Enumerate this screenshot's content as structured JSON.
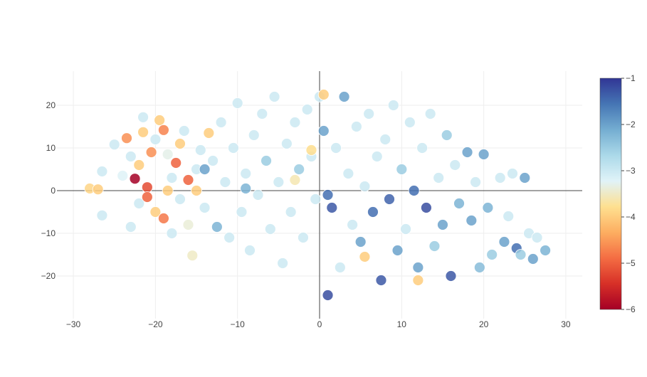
{
  "chart_data": {
    "type": "scatter",
    "title": "",
    "xlabel": "",
    "ylabel": "",
    "xlim": [
      -32,
      32
    ],
    "ylim": [
      -30,
      28
    ],
    "x_ticks": [
      -30,
      -20,
      -10,
      0,
      10,
      20,
      30
    ],
    "y_ticks": [
      -20,
      -10,
      0,
      10,
      20
    ],
    "x_tick_labels": [
      "−30",
      "−20",
      "−10",
      "0",
      "10",
      "20",
      "30"
    ],
    "y_tick_labels": [
      "−20",
      "−10",
      "0",
      "10",
      "20"
    ],
    "grid": true,
    "zero_lines": true,
    "colorscale": "RdYlBu",
    "color_range": [
      -6,
      -1
    ],
    "colorbar": {
      "ticks": [
        -1,
        -2,
        -3,
        -4,
        -5,
        -6
      ],
      "tick_labels": [
        "−1",
        "−2",
        "−3",
        "−4",
        "−5",
        "−6"
      ],
      "colors": [
        "#313695",
        "#4575b4",
        "#74add1",
        "#abd9e9",
        "#e0f3f8",
        "#fee090",
        "#fdae61",
        "#f46d43",
        "#d73027",
        "#a50026"
      ]
    },
    "points": [
      [
        -28,
        0.5,
        -3.9
      ],
      [
        -27,
        0.3,
        -4.0
      ],
      [
        -26.5,
        4.5,
        -3.0
      ],
      [
        -26.5,
        -5.8,
        -3.0
      ],
      [
        -25,
        10.8,
        -3.0
      ],
      [
        -24,
        3.5,
        -3.2
      ],
      [
        -23.5,
        12.3,
        -4.6
      ],
      [
        -23,
        8.0,
        -3.0
      ],
      [
        -23,
        -8.5,
        -3.0
      ],
      [
        -22.5,
        2.8,
        -6.0
      ],
      [
        -22,
        6.0,
        -4.0
      ],
      [
        -22,
        -3.0,
        -3.0
      ],
      [
        -21.5,
        13.7,
        -4.0
      ],
      [
        -21.5,
        17.2,
        -3.0
      ],
      [
        -21,
        0.8,
        -5.2
      ],
      [
        -21,
        -1.5,
        -5.0
      ],
      [
        -20.5,
        9.0,
        -4.6
      ],
      [
        -20,
        -5.0,
        -4.0
      ],
      [
        -20,
        12.0,
        -3.0
      ],
      [
        -19.5,
        16.5,
        -4.0
      ],
      [
        -19,
        14.2,
        -4.7
      ],
      [
        -19,
        -6.5,
        -4.8
      ],
      [
        -18.5,
        8.5,
        -3.3
      ],
      [
        -18.5,
        0.0,
        -4.0
      ],
      [
        -18,
        3.0,
        -3.0
      ],
      [
        -18,
        -10.0,
        -3.0
      ],
      [
        -17.5,
        6.5,
        -5.0
      ],
      [
        -17,
        -2.0,
        -3.0
      ],
      [
        -17,
        11.0,
        -4.0
      ],
      [
        -16.5,
        14.0,
        -3.0
      ],
      [
        -16,
        2.5,
        -5.0
      ],
      [
        -16,
        -8.0,
        -3.4
      ],
      [
        -15.5,
        -15.2,
        -3.5
      ],
      [
        -15,
        5.0,
        -3.0
      ],
      [
        -15,
        0.0,
        -4.0
      ],
      [
        -14.5,
        9.5,
        -3.0
      ],
      [
        -14,
        -4.0,
        -3.0
      ],
      [
        -13.5,
        13.5,
        -4.0
      ],
      [
        -13,
        7.0,
        -3.0
      ],
      [
        -12.5,
        -8.5,
        -2.2
      ],
      [
        -12,
        16.0,
        -3.0
      ],
      [
        -11.5,
        2.0,
        -3.0
      ],
      [
        -11,
        -11.0,
        -3.0
      ],
      [
        -10.5,
        10.0,
        -3.0
      ],
      [
        -10,
        20.5,
        -3.0
      ],
      [
        -9.5,
        -5.0,
        -3.0
      ],
      [
        -9,
        4.0,
        -3.0
      ],
      [
        -8.5,
        -14.0,
        -3.0
      ],
      [
        -8,
        13.0,
        -3.0
      ],
      [
        -7.5,
        -1.0,
        -3.0
      ],
      [
        -7,
        18.0,
        -3.0
      ],
      [
        -6.5,
        7.0,
        -2.5
      ],
      [
        -6,
        -9.0,
        -3.0
      ],
      [
        -5.5,
        22.0,
        -3.0
      ],
      [
        -5,
        2.0,
        -3.0
      ],
      [
        -4.5,
        -17.0,
        -3.0
      ],
      [
        -4,
        11.0,
        -3.0
      ],
      [
        -3.5,
        -5.0,
        -3.0
      ],
      [
        -3,
        16.0,
        -3.0
      ],
      [
        -2.5,
        5.0,
        -2.5
      ],
      [
        -2,
        -11.0,
        -3.0
      ],
      [
        -1.5,
        19.0,
        -3.0
      ],
      [
        -1,
        8.0,
        -3.0
      ],
      [
        -0.5,
        -2.0,
        -3.0
      ],
      [
        0,
        22.0,
        -3.0
      ],
      [
        0.5,
        14.0,
        -2.0
      ],
      [
        1,
        -1.0,
        -1.5
      ],
      [
        1.5,
        -4.0,
        -1.3
      ],
      [
        2,
        10.0,
        -3.0
      ],
      [
        2.5,
        -18.0,
        -3.0
      ],
      [
        1,
        -24.5,
        -1.2
      ],
      [
        3,
        22.0,
        -2.0
      ],
      [
        3.5,
        4.0,
        -3.0
      ],
      [
        4,
        -8.0,
        -3.0
      ],
      [
        4.5,
        15.0,
        -3.0
      ],
      [
        5,
        -12.0,
        -2.0
      ],
      [
        5.5,
        1.0,
        -3.0
      ],
      [
        6,
        18.0,
        -3.0
      ],
      [
        6.5,
        -5.0,
        -1.5
      ],
      [
        7,
        8.0,
        -3.0
      ],
      [
        7.5,
        -21.0,
        -1.3
      ],
      [
        8,
        12.0,
        -3.0
      ],
      [
        8.5,
        -2.0,
        -1.4
      ],
      [
        9,
        20.0,
        -3.0
      ],
      [
        9.5,
        -14.0,
        -2.0
      ],
      [
        10,
        5.0,
        -2.5
      ],
      [
        10.5,
        -9.0,
        -3.0
      ],
      [
        11,
        16.0,
        -3.0
      ],
      [
        11.5,
        0.0,
        -1.5
      ],
      [
        12,
        -18.0,
        -2.0
      ],
      [
        12.5,
        10.0,
        -3.0
      ],
      [
        13,
        -4.0,
        -1.2
      ],
      [
        13.5,
        18.0,
        -3.0
      ],
      [
        14,
        -13.0,
        -2.5
      ],
      [
        14.5,
        3.0,
        -3.0
      ],
      [
        15,
        -8.0,
        -2.0
      ],
      [
        15.5,
        13.0,
        -2.5
      ],
      [
        16,
        -20.0,
        -1.3
      ],
      [
        16.5,
        6.0,
        -3.0
      ],
      [
        17,
        -3.0,
        -2.2
      ],
      [
        18,
        9.0,
        -2.0
      ],
      [
        18.5,
        -7.0,
        -2.0
      ],
      [
        19,
        2.0,
        -3.0
      ],
      [
        19.5,
        -18.0,
        -2.3
      ],
      [
        20,
        8.5,
        -2.0
      ],
      [
        20.5,
        -4.0,
        -2.2
      ],
      [
        21,
        -15.0,
        -2.5
      ],
      [
        22,
        3.0,
        -3.0
      ],
      [
        22.5,
        -12.0,
        -2.0
      ],
      [
        23,
        -6.0,
        -3.0
      ],
      [
        23.5,
        4.0,
        -3.0
      ],
      [
        24,
        -13.5,
        -1.5
      ],
      [
        24.5,
        -15.0,
        -2.5
      ],
      [
        25,
        3.0,
        -2.0
      ],
      [
        25.5,
        -10.0,
        -3.0
      ],
      [
        26,
        -16.0,
        -2.0
      ],
      [
        26.5,
        -11.0,
        -3.0
      ],
      [
        27.5,
        -14.0,
        -2.2
      ],
      [
        0.5,
        22.5,
        -4.0
      ],
      [
        -1,
        9.5,
        -3.8
      ],
      [
        -3,
        2.5,
        -3.6
      ],
      [
        5.5,
        -15.5,
        -4.0
      ],
      [
        12,
        -21.0,
        -4.0
      ],
      [
        -14,
        5.0,
        -2.0
      ],
      [
        -9,
        0.5,
        -2.2
      ]
    ]
  }
}
